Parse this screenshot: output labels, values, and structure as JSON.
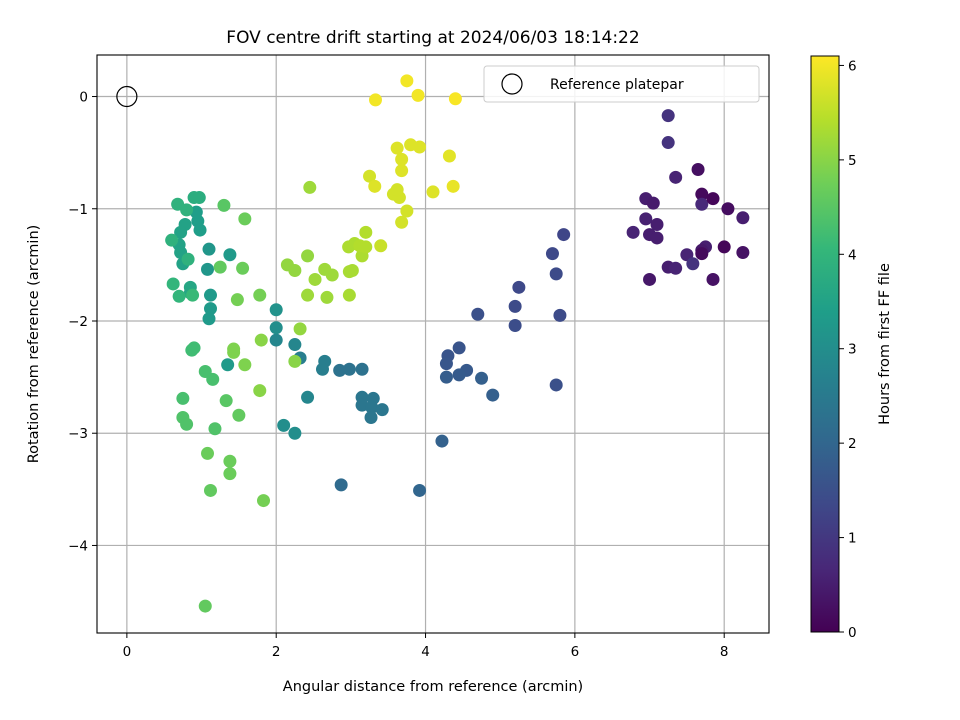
{
  "chart_data": {
    "type": "scatter",
    "title": "FOV centre drift starting at 2024/06/03 18:14:22",
    "xlabel": "Angular distance from reference (arcmin)",
    "ylabel": "Rotation from reference (arcmin)",
    "xlim": [
      -0.4,
      8.6
    ],
    "ylim": [
      -4.78,
      0.37
    ],
    "xticks": [
      0,
      2,
      4,
      6,
      8
    ],
    "yticks": [
      0,
      -1,
      -2,
      -3,
      -4
    ],
    "xtick_labels": [
      "0",
      "2",
      "4",
      "6",
      "8"
    ],
    "ytick_labels": [
      "0",
      "−1",
      "−2",
      "−3",
      "−4"
    ],
    "grid": true,
    "legend": {
      "placement": "top-right",
      "entries": [
        {
          "label": "Reference platepar",
          "marker": "open-circle"
        }
      ]
    },
    "reference_point": {
      "x": 0,
      "y": 0
    },
    "colorbar": {
      "label": "Hours from first FF file",
      "colormap": "viridis",
      "range": [
        0,
        6.1
      ],
      "ticks": [
        0,
        1,
        2,
        3,
        4,
        5,
        6
      ],
      "tick_labels": [
        "0",
        "1",
        "2",
        "3",
        "4",
        "5",
        "6"
      ]
    },
    "colormap_stops": [
      "#440154",
      "#482878",
      "#3e4989",
      "#31688e",
      "#26828e",
      "#1f9e89",
      "#35b779",
      "#6ece58",
      "#b5de2b",
      "#fde725"
    ],
    "points": [
      {
        "x": 7.65,
        "y": -0.65,
        "t": 0.25
      },
      {
        "x": 7.25,
        "y": -0.17,
        "t": 0.9
      },
      {
        "x": 7.25,
        "y": -0.41,
        "t": 0.9
      },
      {
        "x": 6.95,
        "y": -0.91,
        "t": 0.5
      },
      {
        "x": 7.05,
        "y": -0.95,
        "t": 0.45
      },
      {
        "x": 6.95,
        "y": -1.09,
        "t": 0.55
      },
      {
        "x": 7.1,
        "y": -1.14,
        "t": 0.5
      },
      {
        "x": 6.78,
        "y": -1.21,
        "t": 0.6
      },
      {
        "x": 7.0,
        "y": -1.23,
        "t": 0.5
      },
      {
        "x": 7.1,
        "y": -1.26,
        "t": 0.5
      },
      {
        "x": 7.35,
        "y": -0.72,
        "t": 0.6
      },
      {
        "x": 7.7,
        "y": -0.87,
        "t": 0.15
      },
      {
        "x": 7.7,
        "y": -0.96,
        "t": 0.7
      },
      {
        "x": 7.85,
        "y": -0.91,
        "t": 0.1
      },
      {
        "x": 8.05,
        "y": -1.0,
        "t": 0.2
      },
      {
        "x": 8.25,
        "y": -1.08,
        "t": 0.5
      },
      {
        "x": 7.75,
        "y": -1.34,
        "t": 0.5
      },
      {
        "x": 7.7,
        "y": -1.37,
        "t": 0.4
      },
      {
        "x": 7.7,
        "y": -1.4,
        "t": 0.15
      },
      {
        "x": 7.5,
        "y": -1.41,
        "t": 0.6
      },
      {
        "x": 7.58,
        "y": -1.49,
        "t": 0.9
      },
      {
        "x": 7.25,
        "y": -1.52,
        "t": 0.5
      },
      {
        "x": 7.35,
        "y": -1.53,
        "t": 0.6
      },
      {
        "x": 7.0,
        "y": -1.63,
        "t": 0.4
      },
      {
        "x": 7.85,
        "y": -1.63,
        "t": 0.3
      },
      {
        "x": 8.0,
        "y": -1.34,
        "t": 0.1
      },
      {
        "x": 8.25,
        "y": -1.39,
        "t": 0.3
      },
      {
        "x": 5.85,
        "y": -1.23,
        "t": 1.3
      },
      {
        "x": 5.7,
        "y": -1.4,
        "t": 1.35
      },
      {
        "x": 5.75,
        "y": -1.58,
        "t": 1.4
      },
      {
        "x": 5.25,
        "y": -1.7,
        "t": 1.35
      },
      {
        "x": 5.2,
        "y": -1.87,
        "t": 1.4
      },
      {
        "x": 5.8,
        "y": -1.95,
        "t": 1.4
      },
      {
        "x": 5.2,
        "y": -2.04,
        "t": 1.45
      },
      {
        "x": 4.7,
        "y": -1.94,
        "t": 1.5
      },
      {
        "x": 5.75,
        "y": -2.57,
        "t": 1.5
      },
      {
        "x": 4.45,
        "y": -2.24,
        "t": 1.6
      },
      {
        "x": 4.3,
        "y": -2.31,
        "t": 1.6
      },
      {
        "x": 4.28,
        "y": -2.38,
        "t": 1.65
      },
      {
        "x": 4.55,
        "y": -2.44,
        "t": 1.7
      },
      {
        "x": 4.45,
        "y": -2.48,
        "t": 1.75
      },
      {
        "x": 4.28,
        "y": -2.5,
        "t": 1.8
      },
      {
        "x": 4.75,
        "y": -2.51,
        "t": 1.85
      },
      {
        "x": 4.9,
        "y": -2.66,
        "t": 1.85
      },
      {
        "x": 4.22,
        "y": -3.07,
        "t": 1.9
      },
      {
        "x": 3.92,
        "y": -3.51,
        "t": 2.0
      },
      {
        "x": 2.87,
        "y": -3.46,
        "t": 2.1
      },
      {
        "x": 3.15,
        "y": -2.43,
        "t": 2.3
      },
      {
        "x": 2.98,
        "y": -2.43,
        "t": 2.3
      },
      {
        "x": 2.85,
        "y": -2.44,
        "t": 2.3
      },
      {
        "x": 3.15,
        "y": -2.68,
        "t": 2.4
      },
      {
        "x": 3.3,
        "y": -2.69,
        "t": 2.4
      },
      {
        "x": 3.15,
        "y": -2.75,
        "t": 2.4
      },
      {
        "x": 3.28,
        "y": -2.77,
        "t": 2.4
      },
      {
        "x": 3.42,
        "y": -2.79,
        "t": 2.4
      },
      {
        "x": 3.27,
        "y": -2.86,
        "t": 2.4
      },
      {
        "x": 2.65,
        "y": -2.36,
        "t": 2.6
      },
      {
        "x": 2.62,
        "y": -2.43,
        "t": 2.6
      },
      {
        "x": 2.32,
        "y": -2.33,
        "t": 2.6
      },
      {
        "x": 2.25,
        "y": -2.21,
        "t": 2.8
      },
      {
        "x": 2.0,
        "y": -2.17,
        "t": 2.8
      },
      {
        "x": 2.42,
        "y": -2.68,
        "t": 2.8
      },
      {
        "x": 2.1,
        "y": -2.93,
        "t": 3.0
      },
      {
        "x": 2.25,
        "y": -3.0,
        "t": 3.0
      },
      {
        "x": 2.0,
        "y": -2.06,
        "t": 3.0
      },
      {
        "x": 2.0,
        "y": -1.9,
        "t": 3.1
      },
      {
        "x": 1.35,
        "y": -2.39,
        "t": 3.3
      },
      {
        "x": 1.38,
        "y": -1.41,
        "t": 3.3
      },
      {
        "x": 1.08,
        "y": -1.54,
        "t": 3.2
      },
      {
        "x": 1.1,
        "y": -1.36,
        "t": 3.2
      },
      {
        "x": 1.12,
        "y": -1.77,
        "t": 3.3
      },
      {
        "x": 1.12,
        "y": -1.89,
        "t": 3.3
      },
      {
        "x": 1.1,
        "y": -1.98,
        "t": 3.3
      },
      {
        "x": 0.95,
        "y": -1.11,
        "t": 3.4
      },
      {
        "x": 0.98,
        "y": -1.19,
        "t": 3.4
      },
      {
        "x": 0.93,
        "y": -1.03,
        "t": 3.4
      },
      {
        "x": 0.78,
        "y": -1.14,
        "t": 3.5
      },
      {
        "x": 0.72,
        "y": -1.21,
        "t": 3.5
      },
      {
        "x": 0.7,
        "y": -1.32,
        "t": 3.5
      },
      {
        "x": 0.75,
        "y": -1.49,
        "t": 3.5
      },
      {
        "x": 0.72,
        "y": -1.39,
        "t": 3.5
      },
      {
        "x": 0.85,
        "y": -1.7,
        "t": 3.6
      },
      {
        "x": 0.85,
        "y": -1.75,
        "t": 3.6
      },
      {
        "x": 0.9,
        "y": -0.9,
        "t": 3.8
      },
      {
        "x": 0.97,
        "y": -0.9,
        "t": 3.8
      },
      {
        "x": 0.68,
        "y": -0.96,
        "t": 3.9
      },
      {
        "x": 0.8,
        "y": -1.01,
        "t": 3.9
      },
      {
        "x": 0.6,
        "y": -1.28,
        "t": 3.9
      },
      {
        "x": 0.82,
        "y": -1.45,
        "t": 3.9
      },
      {
        "x": 0.62,
        "y": -1.67,
        "t": 4.0
      },
      {
        "x": 0.7,
        "y": -1.78,
        "t": 4.0
      },
      {
        "x": 0.88,
        "y": -1.77,
        "t": 4.1
      },
      {
        "x": 0.9,
        "y": -2.24,
        "t": 4.2
      },
      {
        "x": 0.87,
        "y": -2.26,
        "t": 4.2
      },
      {
        "x": 1.05,
        "y": -2.45,
        "t": 4.3
      },
      {
        "x": 1.15,
        "y": -2.52,
        "t": 4.3
      },
      {
        "x": 0.75,
        "y": -2.69,
        "t": 4.3
      },
      {
        "x": 0.75,
        "y": -2.86,
        "t": 4.4
      },
      {
        "x": 0.8,
        "y": -2.92,
        "t": 4.4
      },
      {
        "x": 1.18,
        "y": -2.96,
        "t": 4.4
      },
      {
        "x": 1.33,
        "y": -2.71,
        "t": 4.5
      },
      {
        "x": 1.5,
        "y": -2.84,
        "t": 4.6
      },
      {
        "x": 1.08,
        "y": -3.18,
        "t": 4.7
      },
      {
        "x": 1.38,
        "y": -3.25,
        "t": 4.7
      },
      {
        "x": 1.38,
        "y": -3.36,
        "t": 4.7
      },
      {
        "x": 1.12,
        "y": -3.51,
        "t": 4.6
      },
      {
        "x": 1.83,
        "y": -3.6,
        "t": 4.8
      },
      {
        "x": 1.05,
        "y": -4.54,
        "t": 4.6
      },
      {
        "x": 1.3,
        "y": -0.97,
        "t": 4.5
      },
      {
        "x": 1.25,
        "y": -1.52,
        "t": 4.6
      },
      {
        "x": 1.58,
        "y": -1.09,
        "t": 4.7
      },
      {
        "x": 1.55,
        "y": -1.53,
        "t": 4.7
      },
      {
        "x": 1.48,
        "y": -1.81,
        "t": 4.8
      },
      {
        "x": 1.78,
        "y": -1.77,
        "t": 4.8
      },
      {
        "x": 1.58,
        "y": -2.39,
        "t": 4.9
      },
      {
        "x": 1.43,
        "y": -2.25,
        "t": 4.9
      },
      {
        "x": 1.43,
        "y": -2.28,
        "t": 4.9
      },
      {
        "x": 1.78,
        "y": -2.62,
        "t": 5.0
      },
      {
        "x": 1.8,
        "y": -2.17,
        "t": 5.0
      },
      {
        "x": 2.25,
        "y": -2.36,
        "t": 5.0
      },
      {
        "x": 2.32,
        "y": -2.07,
        "t": 5.1
      },
      {
        "x": 2.15,
        "y": -1.5,
        "t": 5.1
      },
      {
        "x": 2.25,
        "y": -1.55,
        "t": 5.1
      },
      {
        "x": 2.42,
        "y": -1.42,
        "t": 5.1
      },
      {
        "x": 2.52,
        "y": -1.63,
        "t": 5.2
      },
      {
        "x": 2.42,
        "y": -1.77,
        "t": 5.2
      },
      {
        "x": 2.65,
        "y": -1.54,
        "t": 5.2
      },
      {
        "x": 2.75,
        "y": -1.59,
        "t": 5.2
      },
      {
        "x": 2.68,
        "y": -1.79,
        "t": 5.2
      },
      {
        "x": 2.45,
        "y": -0.81,
        "t": 5.2
      },
      {
        "x": 2.98,
        "y": -1.77,
        "t": 5.3
      },
      {
        "x": 2.98,
        "y": -1.56,
        "t": 5.3
      },
      {
        "x": 3.02,
        "y": -1.55,
        "t": 5.3
      },
      {
        "x": 3.15,
        "y": -1.42,
        "t": 5.35
      },
      {
        "x": 2.97,
        "y": -1.34,
        "t": 5.35
      },
      {
        "x": 3.05,
        "y": -1.31,
        "t": 5.35
      },
      {
        "x": 3.12,
        "y": -1.33,
        "t": 5.4
      },
      {
        "x": 3.2,
        "y": -1.34,
        "t": 5.4
      },
      {
        "x": 3.2,
        "y": -1.21,
        "t": 5.4
      },
      {
        "x": 3.4,
        "y": -1.33,
        "t": 5.6
      },
      {
        "x": 3.68,
        "y": -1.12,
        "t": 5.7
      },
      {
        "x": 3.75,
        "y": -1.02,
        "t": 5.7
      },
      {
        "x": 3.57,
        "y": -0.87,
        "t": 5.7
      },
      {
        "x": 3.65,
        "y": -0.9,
        "t": 5.7
      },
      {
        "x": 3.62,
        "y": -0.83,
        "t": 5.7
      },
      {
        "x": 3.25,
        "y": -0.71,
        "t": 5.7
      },
      {
        "x": 3.32,
        "y": -0.8,
        "t": 5.8
      },
      {
        "x": 3.68,
        "y": -0.66,
        "t": 5.8
      },
      {
        "x": 3.68,
        "y": -0.56,
        "t": 5.8
      },
      {
        "x": 3.62,
        "y": -0.46,
        "t": 5.8
      },
      {
        "x": 3.8,
        "y": -0.43,
        "t": 5.8
      },
      {
        "x": 3.92,
        "y": -0.45,
        "t": 5.8
      },
      {
        "x": 4.1,
        "y": -0.85,
        "t": 5.8
      },
      {
        "x": 4.32,
        "y": -0.53,
        "t": 5.85
      },
      {
        "x": 4.37,
        "y": -0.8,
        "t": 5.9
      },
      {
        "x": 3.33,
        "y": -0.03,
        "t": 6.0
      },
      {
        "x": 3.75,
        "y": 0.14,
        "t": 6.0
      },
      {
        "x": 3.9,
        "y": 0.01,
        "t": 6.0
      },
      {
        "x": 4.4,
        "y": -0.02,
        "t": 6.05
      }
    ]
  }
}
